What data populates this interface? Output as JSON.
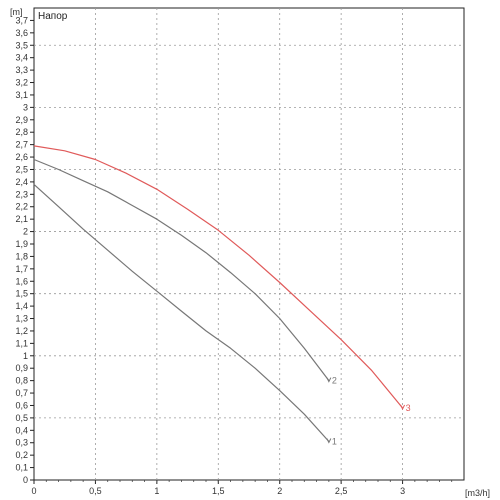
{
  "chart_data": {
    "type": "line",
    "title": "Напор",
    "xlabel": "[m3/h]",
    "ylabel": "[m]",
    "xlim": [
      0,
      3.5
    ],
    "ylim": [
      0,
      3.8
    ],
    "x_ticks": [
      0,
      0.5,
      1,
      1.5,
      2,
      2.5,
      3
    ],
    "x_tick_labels": [
      "0",
      "0,5",
      "1",
      "1,5",
      "2",
      "2,5",
      "3"
    ],
    "y_ticks": [
      0,
      0.1,
      0.2,
      0.3,
      0.4,
      0.5,
      0.6,
      0.7,
      0.8,
      0.9,
      1,
      1.1,
      1.2,
      1.3,
      1.4,
      1.5,
      1.6,
      1.7,
      1.8,
      1.9,
      2,
      2.1,
      2.2,
      2.3,
      2.4,
      2.5,
      2.6,
      2.7,
      2.8,
      2.9,
      3,
      3.1,
      3.2,
      3.3,
      3.4,
      3.5,
      3.6,
      3.7
    ],
    "y_tick_labels": [
      "0",
      "0,1",
      "0,2",
      "0,3",
      "0,4",
      "0,5",
      "0,6",
      "0,7",
      "0,8",
      "0,9",
      "1",
      "1,1",
      "1,2",
      "1,3",
      "1,4",
      "1,5",
      "1,6",
      "1,7",
      "1,8",
      "1,9",
      "2",
      "2,1",
      "2,2",
      "2,3",
      "2,4",
      "2,5",
      "2,6",
      "2,7",
      "2,8",
      "2,9",
      "3",
      "3,1",
      "3,2",
      "3,3",
      "3,4",
      "3,5",
      "3,6",
      "3,7"
    ],
    "grid": true,
    "series": [
      {
        "name": "1",
        "color": "#777777",
        "x": [
          0,
          0.2,
          0.4,
          0.6,
          0.8,
          1.0,
          1.2,
          1.4,
          1.6,
          1.8,
          2.0,
          2.2,
          2.4
        ],
        "y": [
          2.38,
          2.2,
          2.02,
          1.85,
          1.68,
          1.52,
          1.36,
          1.2,
          1.06,
          0.9,
          0.72,
          0.53,
          0.31
        ]
      },
      {
        "name": "2",
        "color": "#777777",
        "x": [
          0,
          0.2,
          0.4,
          0.6,
          0.8,
          1.0,
          1.2,
          1.4,
          1.6,
          1.8,
          2.0,
          2.2,
          2.4
        ],
        "y": [
          2.58,
          2.5,
          2.41,
          2.32,
          2.21,
          2.1,
          1.97,
          1.83,
          1.67,
          1.5,
          1.3,
          1.06,
          0.8
        ]
      },
      {
        "name": "3",
        "color": "#e05a5a",
        "x": [
          0,
          0.25,
          0.5,
          0.75,
          1.0,
          1.25,
          1.5,
          1.75,
          2.0,
          2.25,
          2.5,
          2.75,
          3.0
        ],
        "y": [
          2.69,
          2.65,
          2.58,
          2.47,
          2.34,
          2.18,
          2.01,
          1.81,
          1.59,
          1.36,
          1.13,
          0.88,
          0.58
        ]
      }
    ]
  }
}
